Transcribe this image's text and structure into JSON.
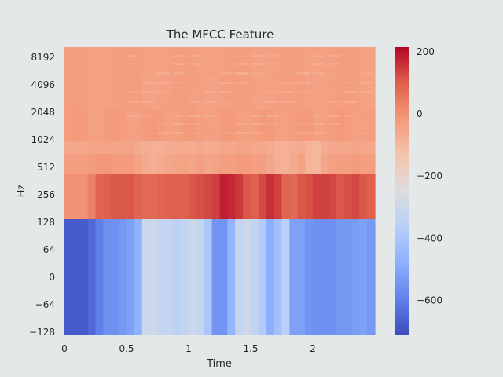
{
  "chart_data": {
    "type": "heatmap",
    "title": "The MFCC Feature",
    "xlabel": "Time",
    "ylabel": "Hz",
    "xlim": [
      0,
      2.5
    ],
    "x_ticks": [
      0,
      0.5,
      1,
      1.5,
      2
    ],
    "x_tick_labels": [
      "0",
      "0.5",
      "1",
      "1.5",
      "2"
    ],
    "y_tick_labels": [
      "-128",
      "-64",
      "0",
      "64",
      "128",
      "256",
      "512",
      "1024",
      "2048",
      "4096",
      "8192"
    ],
    "colorbar": {
      "range": [
        -710,
        215
      ],
      "ticks": [
        200,
        0,
        -200,
        -400,
        -600
      ],
      "tick_labels": [
        "200",
        "0",
        "−200",
        "−400",
        "−600"
      ],
      "colormap": "coolwarm"
    },
    "grid": false,
    "description_of_values": "Coefficient 0 (bottom band) around -650 to -300; upper coefficients around -100 to 200",
    "row_profiles": {
      "low_band": [
        -680,
        -680,
        -680,
        -650,
        -600,
        -560,
        -560,
        -540,
        -520,
        -470,
        -300,
        -300,
        -320,
        -320,
        -350,
        -330,
        -300,
        -320,
        -400,
        -550,
        -550,
        -460,
        -320,
        -300,
        -340,
        -380,
        -480,
        -420,
        -360,
        -520,
        -520,
        -550,
        -560,
        -560,
        -560,
        -540,
        -540,
        -530,
        -520,
        -540
      ],
      "band_256": [
        0,
        0,
        0,
        30,
        90,
        100,
        110,
        110,
        110,
        90,
        80,
        80,
        90,
        100,
        100,
        95,
        110,
        120,
        130,
        140,
        180,
        170,
        150,
        110,
        100,
        130,
        160,
        140,
        90,
        80,
        110,
        120,
        140,
        140,
        130,
        110,
        120,
        130,
        110,
        100
      ],
      "band_512": [
        -30,
        -30,
        -30,
        -20,
        -10,
        -10,
        -20,
        -20,
        -20,
        -40,
        -60,
        -70,
        -60,
        -50,
        -40,
        -40,
        -50,
        -30,
        -50,
        -40,
        -30,
        -30,
        -20,
        -20,
        -30,
        -30,
        -50,
        -70,
        -80,
        -60,
        -40,
        -90,
        -100,
        -50,
        -30,
        -30,
        -30,
        -20,
        -30,
        -30
      ]
    }
  }
}
